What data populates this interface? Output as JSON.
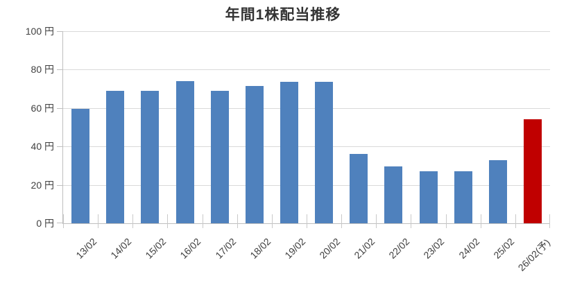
{
  "title": "年間1株配当推移",
  "chart_data": {
    "type": "bar",
    "title": "年間1株配当推移",
    "unit": "円",
    "categories": [
      "13/02",
      "14/02",
      "15/02",
      "16/02",
      "17/02",
      "18/02",
      "19/02",
      "20/02",
      "21/02",
      "22/02",
      "23/02",
      "24/02",
      "25/02",
      "26/02(予)"
    ],
    "values": [
      59.5,
      69,
      69,
      74,
      69,
      71.5,
      73.5,
      73.5,
      36,
      29.5,
      27,
      27,
      33,
      54
    ],
    "bar_colors": [
      "#4F81BD",
      "#4F81BD",
      "#4F81BD",
      "#4F81BD",
      "#4F81BD",
      "#4F81BD",
      "#4F81BD",
      "#4F81BD",
      "#4F81BD",
      "#4F81BD",
      "#4F81BD",
      "#4F81BD",
      "#4F81BD",
      "#C00000"
    ],
    "forecast_category": "26/02(予)",
    "y_ticks": [
      0,
      20,
      40,
      60,
      80,
      100
    ],
    "y_tick_labels": [
      "0 円",
      "20 円",
      "40 円",
      "60 円",
      "80 円",
      "100 円"
    ],
    "ylim": [
      0,
      100
    ],
    "grid": true,
    "legend_position": "none",
    "colors": {
      "default_bar": "#4F81BD",
      "forecast_bar": "#C00000",
      "gridline": "#D9D9D9",
      "axis": "#BFBFBF",
      "text": "#404040",
      "title_text": "#333333",
      "background": "#FFFFFF"
    }
  }
}
